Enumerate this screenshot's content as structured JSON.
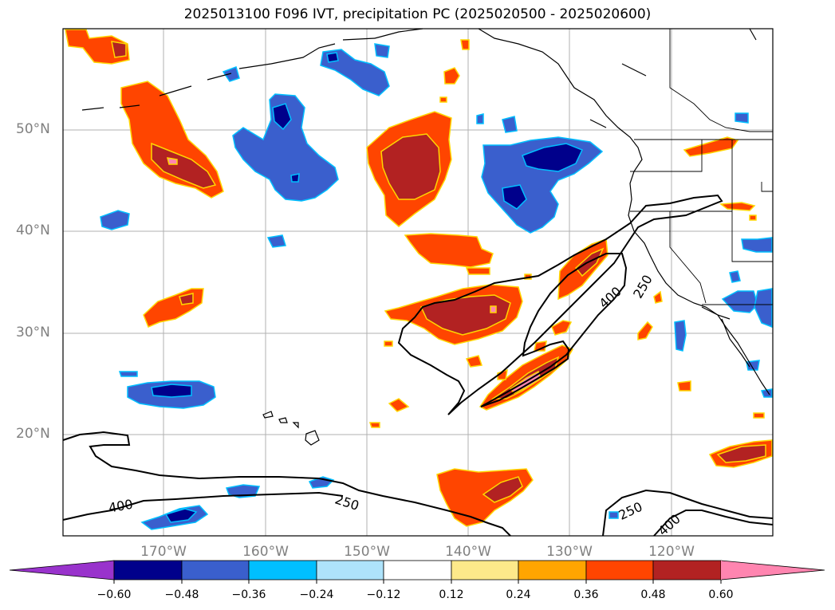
{
  "title": "2025013100 F096 IVT, precipitation PC (2025020500 - 2025020600)",
  "lat_labels": [
    "50°N",
    "40°N",
    "30°N",
    "20°N"
  ],
  "lon_labels": [
    "170°W",
    "160°W",
    "150°W",
    "140°W",
    "130°W",
    "120°W"
  ],
  "contour_labels": [
    "400",
    "250",
    "400",
    "250",
    "250",
    "400"
  ],
  "colorbar": {
    "ticks": [
      "−0.60",
      "−0.48",
      "−0.36",
      "−0.24",
      "−0.12",
      "0.12",
      "0.24",
      "0.36",
      "0.48",
      "0.60"
    ],
    "colors": [
      "#9933cc",
      "#00008b",
      "#3a5fcd",
      "#00bfff",
      "#aee3fb",
      "#ffffff",
      "#fde98a",
      "#ffa500",
      "#ff4500",
      "#b22222",
      "#ff85b0"
    ]
  }
}
